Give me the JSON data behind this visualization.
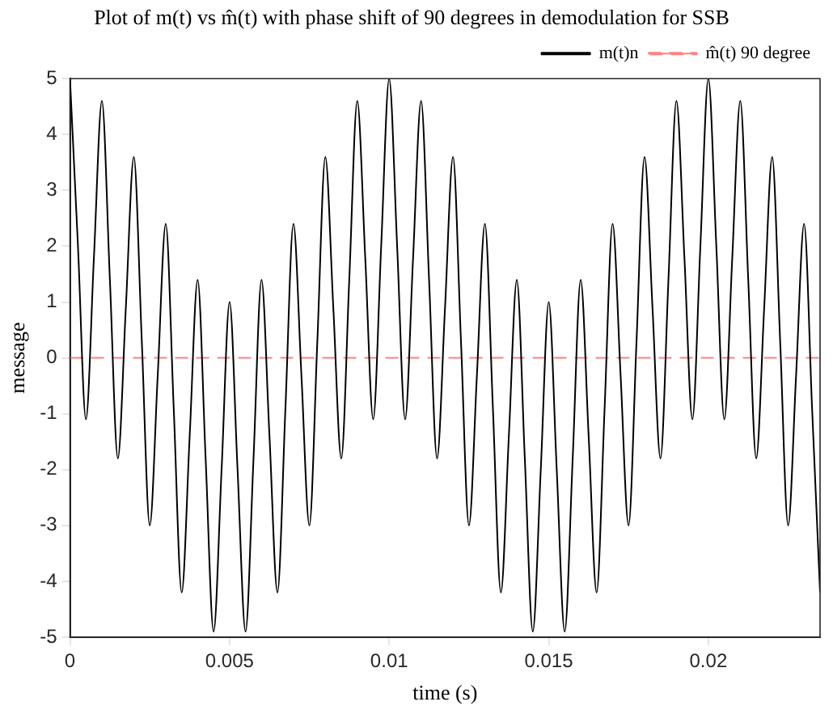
{
  "chart_data": {
    "type": "line",
    "title": "Plot of m(t) vs m̂(t) with phase shift of 90 degrees in demodulation for SSB",
    "xlabel": "time (s)",
    "ylabel": "message",
    "xlim": [
      0,
      0.0235
    ],
    "xticks": [
      0,
      0.005,
      0.01,
      0.015,
      0.02
    ],
    "ylim": [
      -5,
      5
    ],
    "yticks": [
      -5,
      -4,
      -3,
      -2,
      -1,
      0,
      1,
      2,
      3,
      4,
      5
    ],
    "grid": false,
    "legend": "top right",
    "marker": "none",
    "series": [
      {
        "name": "m(t)n",
        "color": "#000000",
        "line_style": "solid",
        "x": [
          0,
          0.00025,
          0.0005,
          0.00075,
          0.001,
          0.00125,
          0.0015,
          0.00175,
          0.002,
          0.00225,
          0.0025,
          0.00275,
          0.003,
          0.00325,
          0.0035,
          0.00375,
          0.004,
          0.00425,
          0.0045,
          0.00475,
          0.005,
          0.00525,
          0.0055,
          0.00575,
          0.006,
          0.00625,
          0.0065,
          0.00675,
          0.007,
          0.00725,
          0.0075,
          0.00775,
          0.008,
          0.00825,
          0.0085,
          0.00875,
          0.009,
          0.00925,
          0.0095,
          0.00975,
          0.01,
          0.01025,
          0.0105,
          0.01075,
          0.011,
          0.01125,
          0.0115,
          0.01175,
          0.012,
          0.01225,
          0.0125,
          0.01275,
          0.013,
          0.01325,
          0.0135,
          0.01375,
          0.014,
          0.01425,
          0.0145,
          0.01475,
          0.015,
          0.01525,
          0.0155,
          0.01575,
          0.016,
          0.01625,
          0.0165,
          0.01675,
          0.017,
          0.01725,
          0.0175,
          0.01775,
          0.018,
          0.01825,
          0.0185,
          0.01875,
          0.019,
          0.01925,
          0.0195,
          0.01975,
          0.02,
          0.02025,
          0.0205,
          0.02075,
          0.021,
          0.02125,
          0.0215,
          0.02175,
          0.022,
          0.02225,
          0.0225,
          0.02275,
          0.023,
          0.02325,
          0.0235
        ],
        "values": [
          5.0,
          2.0,
          -1.1,
          1.8,
          4.6,
          1.4,
          -1.8,
          0.9,
          3.6,
          0.3,
          -3.0,
          -0.3,
          2.4,
          -0.9,
          -4.2,
          -1.4,
          1.4,
          -1.8,
          -4.9,
          -2.0,
          1.0,
          -2.0,
          -4.9,
          -1.8,
          1.4,
          -1.4,
          -4.2,
          -0.9,
          2.4,
          -0.3,
          -3.0,
          0.3,
          3.6,
          0.9,
          -1.8,
          1.4,
          4.6,
          1.8,
          -1.1,
          2.0,
          5.0,
          2.0,
          -1.1,
          1.8,
          4.6,
          1.4,
          -1.8,
          0.9,
          3.6,
          0.3,
          -3.0,
          -0.3,
          2.4,
          -0.9,
          -4.2,
          -1.4,
          1.4,
          -1.8,
          -4.9,
          -2.0,
          1.0,
          -2.0,
          -4.9,
          -1.8,
          1.4,
          -1.4,
          -4.2,
          -0.9,
          2.4,
          -0.3,
          -3.0,
          0.3,
          3.6,
          0.9,
          -1.8,
          1.4,
          4.6,
          1.8,
          -1.1,
          2.0,
          5.0,
          2.0,
          -1.1,
          1.8,
          4.6,
          1.4,
          -1.8,
          0.9,
          3.6,
          0.3,
          -3.0,
          -0.3,
          2.4,
          -0.9,
          -4.2
        ]
      },
      {
        "name": "m̂(t) 90 degree",
        "color": "#ff8080",
        "line_style": "dashed",
        "x": [
          0,
          0.0235
        ],
        "values": [
          0,
          0
        ]
      }
    ]
  }
}
